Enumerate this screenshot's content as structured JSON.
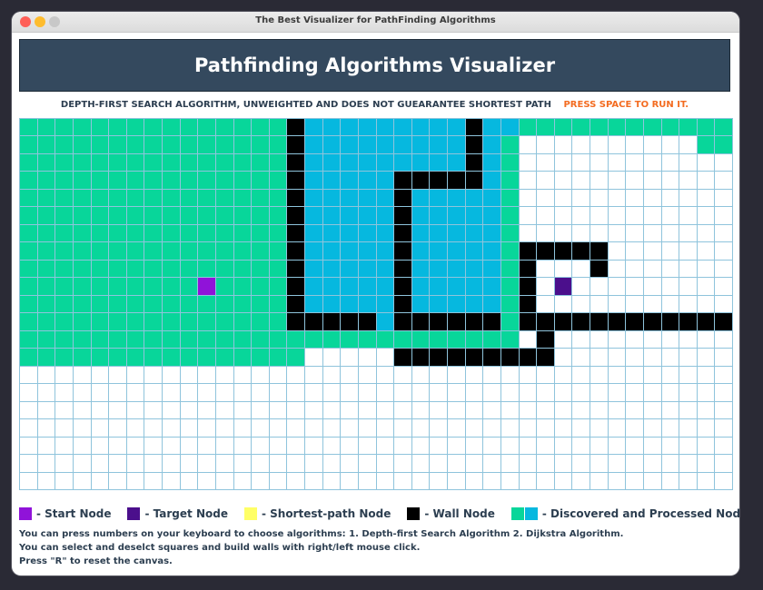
{
  "window": {
    "title": "The Best Visualizer for PathFinding Algorithms"
  },
  "header": {
    "title": "Pathfinding Algorithms Visualizer"
  },
  "subtitle": {
    "description": "DEPTH-FIRST SEARCH ALGORITHM, UNWEIGHTED AND DOES NOT GUEARANTEE SHORTEST PATH",
    "run_hint": "PRESS SPACE TO RUN IT."
  },
  "colors": {
    "start": "#9013d9",
    "target": "#4b0f8c",
    "shortest": "#ffff66",
    "wall": "#000000",
    "discovered": "#08d69a",
    "processed": "#06b8df",
    "empty": "#ffffff",
    "gridline": "#8fc4dc",
    "header_bg": "#34495e",
    "accent": "#f36c21"
  },
  "grid": {
    "cols": 40,
    "rows": 21,
    "cells": [
      "GGGGGGGGGGGGGGGWBBBBBBBBBWBBGGGGGGGGGGGG",
      "GGGGGGGGGGGGGGGWBBBBBBBBBWBGEEEEEEEEEEGG",
      "GGGGGGGGGGGGGGGWBBBBBBBBBWBGEEEEEEEEEEEE",
      "GGGGGGGGGGGGGGGWBBBBBWWWWWBGEEEEEEEEEEEE",
      "GGGGGGGGGGGGGGGWBBBBBWBBBBBGEEEEEEEEEEEE",
      "GGGGGGGGGGGGGGGWBBBBBWBBBBBGEEEEEEEEEEEE",
      "GGGGGGGGGGGGGGGWBBBBBWBBBBBGEEEEEEEEEEEE",
      "GGGGGGGGGGGGGGGWBBBBBWBBBBBGWWWWWEEEEEEE",
      "GGGGGGGGGGGGGGGWBBBBBWBBBBBGWEEEWEEEEEEE",
      "GGGGGGGGGGSGGGGWBBBBBWBBBBBGWETEEEEEEEEE",
      "GGGGGGGGGGGGGGGWBBBBBWBBBBBGWEEEEEEEEEEE",
      "GGGGGGGGGGGGGGGWWWWWBWWWWWWGWWWWWWWWWWWW",
      "GGGGGGGGGGGGGGGGGGGGGGGGGGGGEWEEEEEEEEEE",
      "GGGGGGGGGGGGGGGGEEEEEWWWWWWWWWEEEEEEEEEE",
      "EEEEEEEEEEEEEEEEEEEEEEEEEEEEEEEEEEEEEEEE",
      "EEEEEEEEEEEEEEEEEEEEEEEEEEEEEEEEEEEEEEEE",
      "EEEEEEEEEEEEEEEEEEEEEEEEEEEEEEEEEEEEEEEE",
      "EEEEEEEEEEEEEEEEEEEEEEEEEEEEEEEEEEEEEEEE",
      "EEEEEEEEEEEEEEEEEEEEEEEEEEEEEEEEEEEEEEEE",
      "EEEEEEEEEEEEEEEEEEEEEEEEEEEEEEEEEEEEEEEE",
      "EEEEEEEEEEEEEEEEEEEEEEEEEEEEEEEEEEEEEEEE"
    ]
  },
  "legend": {
    "start": "- Start Node",
    "target": "- Target Node",
    "shortest": "- Shortest-path Node",
    "wall": "- Wall Node",
    "discovered": "- Discovered and Processed Nodes"
  },
  "help": {
    "line1": "You can press numbers on your keyboard to choose algorithms: 1. Depth-first Search Algorithm 2. Dijkstra Algorithm.",
    "line2": "You can select and deselct squares and build walls with right/left mouse click.",
    "line3": "Press \"R\" to reset the canvas."
  }
}
